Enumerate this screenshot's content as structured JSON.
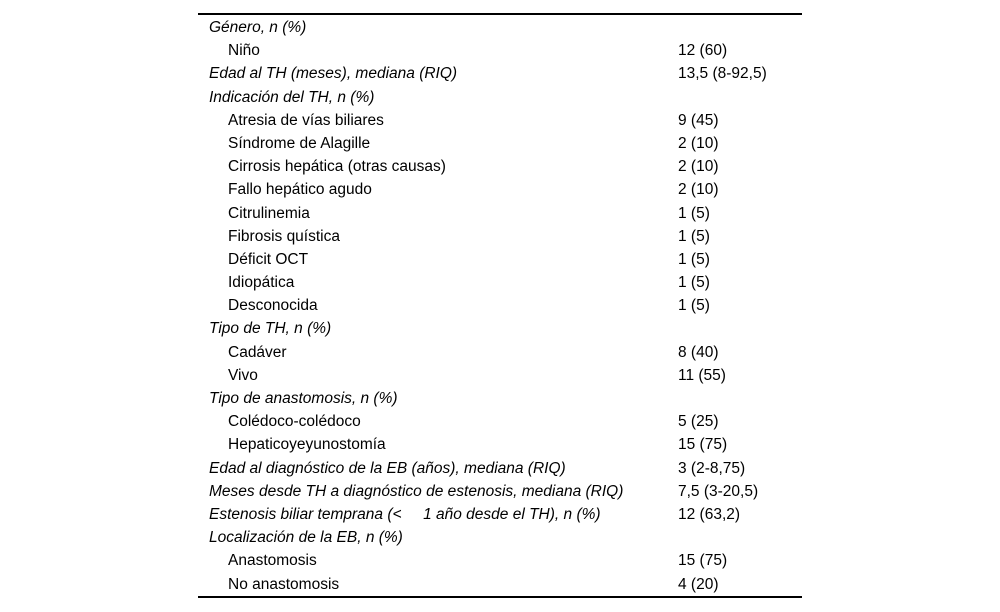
{
  "table": {
    "rows": [
      {
        "type": "section",
        "label": "Género, n (%)",
        "value": ""
      },
      {
        "type": "item",
        "label": "Niño",
        "value": "12 (60)"
      },
      {
        "type": "section",
        "label": "Edad al TH (meses), mediana (RIQ)",
        "value": "13,5 (8-92,5)"
      },
      {
        "type": "section",
        "label": "Indicación del TH, n (%)",
        "value": ""
      },
      {
        "type": "item",
        "label": "Atresia de vías biliares",
        "value": "9 (45)"
      },
      {
        "type": "item",
        "label": "Síndrome de Alagille",
        "value": "2 (10)"
      },
      {
        "type": "item",
        "label": "Cirrosis hepática (otras causas)",
        "value": "2 (10)"
      },
      {
        "type": "item",
        "label": "Fallo hepático agudo",
        "value": "2 (10)"
      },
      {
        "type": "item",
        "label": "Citrulinemia",
        "value": "1 (5)"
      },
      {
        "type": "item",
        "label": "Fibrosis quística",
        "value": "1 (5)"
      },
      {
        "type": "item",
        "label": "Déficit OCT",
        "value": "1 (5)"
      },
      {
        "type": "item",
        "label": "Idiopática",
        "value": "1 (5)"
      },
      {
        "type": "item",
        "label": "Desconocida",
        "value": "1 (5)"
      },
      {
        "type": "section",
        "label": "Tipo de TH, n (%)",
        "value": ""
      },
      {
        "type": "item",
        "label": "Cadáver",
        "value": "8 (40)"
      },
      {
        "type": "item",
        "label": "Vivo",
        "value": "11 (55)"
      },
      {
        "type": "section",
        "label": "Tipo de anastomosis, n (%)",
        "value": ""
      },
      {
        "type": "item",
        "label": "Colédoco-colédoco",
        "value": "5 (25)"
      },
      {
        "type": "item",
        "label": "Hepaticoyeyunostomía",
        "value": "15 (75)"
      },
      {
        "type": "section",
        "label": "Edad al diagnóstico de la EB (años), mediana (RIQ)",
        "value": "3 (2-8,75)"
      },
      {
        "type": "section",
        "label": "Meses desde TH a diagnóstico de estenosis, mediana (RIQ)",
        "value": "7,5 (3-20,5)"
      },
      {
        "type": "section",
        "label": "Estenosis biliar temprana (<     1 año desde el TH), n (%)",
        "value": "12 (63,2)"
      },
      {
        "type": "section",
        "label": "Localización de la EB, n (%)",
        "value": ""
      },
      {
        "type": "item",
        "label": "Anastomosis",
        "value": "15 (75)"
      },
      {
        "type": "item",
        "label": "No anastomosis",
        "value": "4 (20)"
      }
    ],
    "colors": {
      "text": "#000000",
      "rule": "#000000",
      "background": "#ffffff"
    }
  }
}
